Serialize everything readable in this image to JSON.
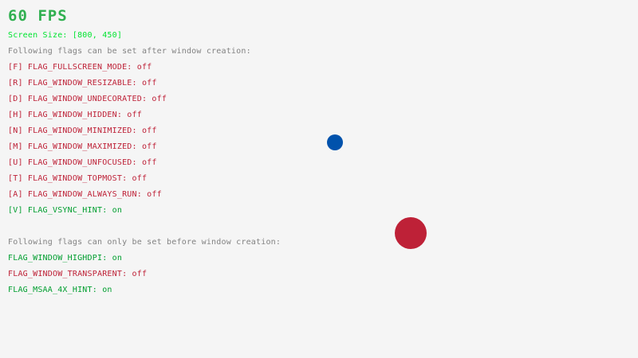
{
  "fps": "60 FPS",
  "screen_size": "Screen Size: [800, 450]",
  "after_header": "Following flags can be set after window creation:",
  "after_flags": [
    {
      "label": "[F] FLAG_FULLSCREEN_MODE: off",
      "state": "off"
    },
    {
      "label": "[R] FLAG_WINDOW_RESIZABLE: off",
      "state": "off"
    },
    {
      "label": "[D] FLAG_WINDOW_UNDECORATED: off",
      "state": "off"
    },
    {
      "label": "[H] FLAG_WINDOW_HIDDEN: off",
      "state": "off"
    },
    {
      "label": "[N] FLAG_WINDOW_MINIMIZED: off",
      "state": "off"
    },
    {
      "label": "[M] FLAG_WINDOW_MAXIMIZED: off",
      "state": "off"
    },
    {
      "label": "[U] FLAG_WINDOW_UNFOCUSED: off",
      "state": "off"
    },
    {
      "label": "[T] FLAG_WINDOW_TOPMOST: off",
      "state": "off"
    },
    {
      "label": "[A] FLAG_WINDOW_ALWAYS_RUN: off",
      "state": "off"
    },
    {
      "label": "[V] FLAG_VSYNC_HINT: on",
      "state": "on"
    }
  ],
  "before_header": "Following flags can only be set before window creation:",
  "before_flags": [
    {
      "label": "FLAG_WINDOW_HIGHDPI: on",
      "state": "on"
    },
    {
      "label": "FLAG_WINDOW_TRANSPARENT: off",
      "state": "off"
    },
    {
      "label": "FLAG_MSAA_4X_HINT: on",
      "state": "on"
    }
  ],
  "colors": {
    "background": "#F5F5F5",
    "fps": "#30B050",
    "screen_size": "#00E430",
    "header": "#828282",
    "on": "#009E2F",
    "off": "#BE2137",
    "blue_ball": "#0052AC",
    "red_ball": "#BE2137"
  }
}
